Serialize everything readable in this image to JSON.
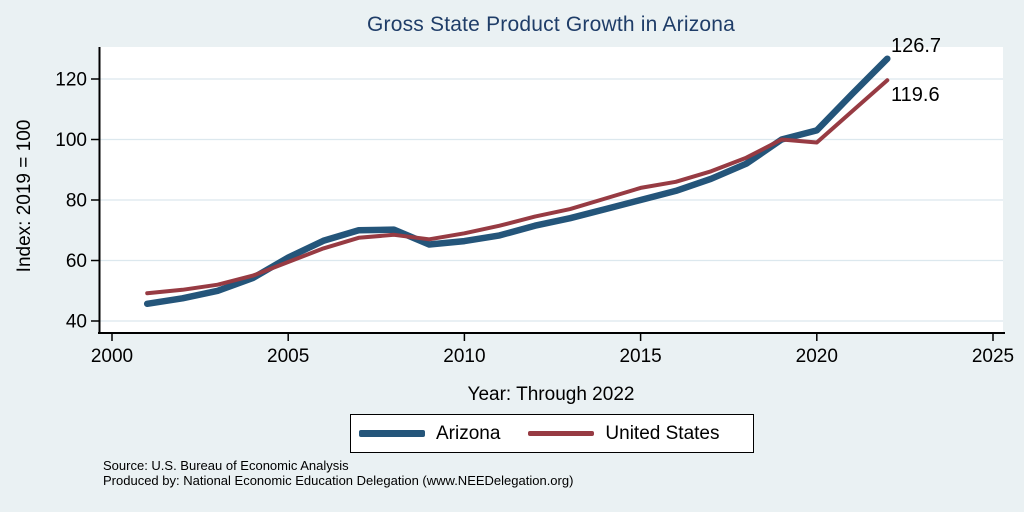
{
  "page": {
    "background": "#EAF1F3"
  },
  "chart_data": {
    "type": "line",
    "title": "Gross State Product Growth in Arizona",
    "title_color": "#1F3D68",
    "xlabel": "Year: Through 2022",
    "ylabel": "Index: 2019 = 100",
    "x": [
      2001,
      2002,
      2003,
      2004,
      2005,
      2006,
      2007,
      2008,
      2009,
      2010,
      2011,
      2012,
      2013,
      2014,
      2015,
      2016,
      2017,
      2018,
      2019,
      2020,
      2021,
      2022
    ],
    "series": [
      {
        "name": "Arizona",
        "color": "#24557A",
        "stroke_width": 6.5,
        "values": [
          45.7,
          47.5,
          50.0,
          54.2,
          61.0,
          66.5,
          70.0,
          70.2,
          65.3,
          66.4,
          68.3,
          71.5,
          74.0,
          77.0,
          80.0,
          83.0,
          87.0,
          92.0,
          100.0,
          103.0,
          115.0,
          126.7
        ]
      },
      {
        "name": "United States",
        "color": "#973B43",
        "stroke_width": 4,
        "values": [
          49.2,
          50.3,
          52.0,
          55.0,
          59.5,
          64.0,
          67.5,
          68.5,
          67.0,
          69.0,
          71.5,
          74.5,
          77.0,
          80.5,
          84.0,
          86.0,
          89.5,
          94.0,
          100.0,
          99.0,
          109.3,
          119.6
        ]
      }
    ],
    "end_labels": [
      {
        "text": "126.7",
        "series": "Arizona"
      },
      {
        "text": "119.6",
        "series": "United States"
      }
    ],
    "xticks": [
      2000,
      2005,
      2010,
      2015,
      2020,
      2025
    ],
    "yticks": [
      40,
      60,
      80,
      100,
      120
    ],
    "xlim": [
      2000,
      2025.4
    ],
    "ylim": [
      40,
      130
    ],
    "grid": true,
    "gridline_color": "#DCE8EE",
    "plot_background": "#FFFFFF",
    "axis_color": "#000000",
    "tick_label_size": 19,
    "legend_position": "bottom"
  },
  "legend": {
    "items": [
      {
        "label": "Arizona"
      },
      {
        "label": "United States"
      }
    ]
  },
  "footer": {
    "source_line": "Source: U.S. Bureau of Economic Analysis",
    "produced_by_line": "Produced by: National Economic Education Delegation (www.NEEDelegation.org)"
  }
}
